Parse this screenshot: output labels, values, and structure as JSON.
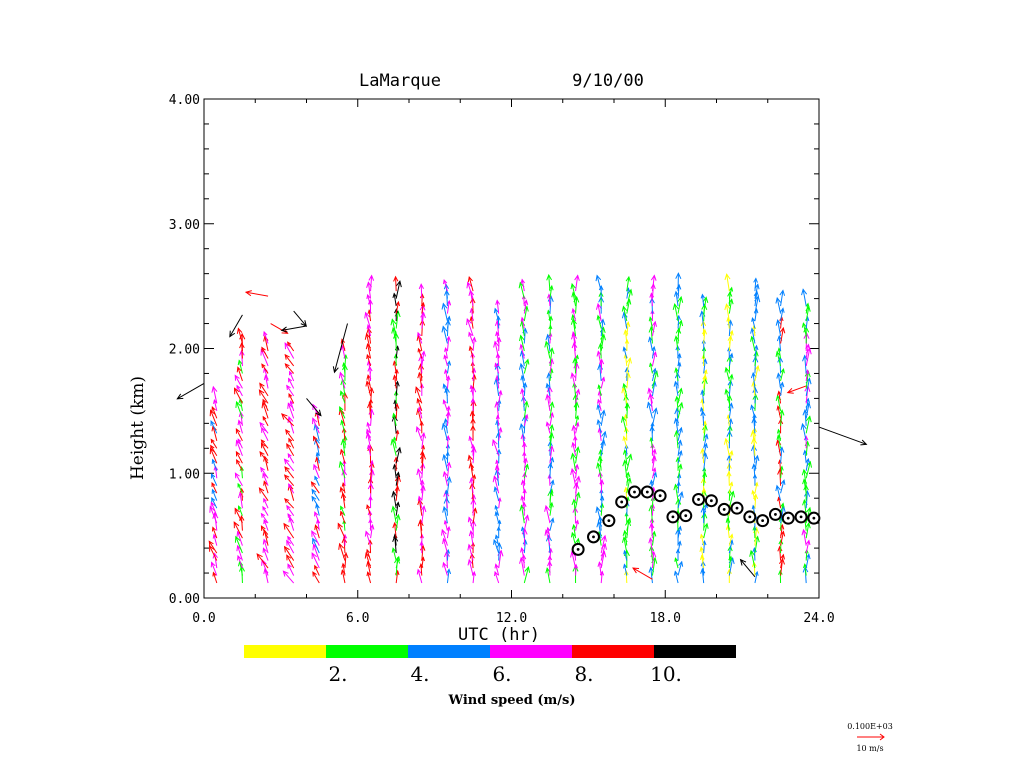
{
  "chart_data": {
    "type": "wind-profile",
    "title_location": "LaMarque",
    "title_date": "9/10/00",
    "xlabel": "UTC (hr)",
    "ylabel": "Height (km)",
    "xlim": [
      0,
      24
    ],
    "ylim": [
      0,
      4
    ],
    "x_ticks": [
      {
        "v": 0,
        "label": "0.0"
      },
      {
        "v": 6,
        "label": "6.0"
      },
      {
        "v": 12,
        "label": "12.0"
      },
      {
        "v": 18,
        "label": "18.0"
      },
      {
        "v": 24,
        "label": "24.0"
      }
    ],
    "y_ticks": [
      {
        "v": 0,
        "label": "0.00"
      },
      {
        "v": 1,
        "label": "1.00"
      },
      {
        "v": 2,
        "label": "2.00"
      },
      {
        "v": 3,
        "label": "3.00"
      },
      {
        "v": 4,
        "label": "4.00"
      }
    ],
    "profiles": [
      {
        "t": 0.5,
        "top": 1.6,
        "c": [
          "magenta",
          "red",
          "blue"
        ],
        "dir": 160
      },
      {
        "t": 1.5,
        "top": 2.1,
        "c": [
          "magenta",
          "red",
          "green"
        ],
        "dir": 165
      },
      {
        "t": 2.5,
        "top": 2.1,
        "c": [
          "red",
          "magenta"
        ],
        "dir": 155
      },
      {
        "t": 3.5,
        "top": 2.0,
        "c": [
          "red",
          "magenta"
        ],
        "dir": 150
      },
      {
        "t": 4.5,
        "top": 1.5,
        "c": [
          "red",
          "magenta",
          "blue"
        ],
        "dir": 160
      },
      {
        "t": 5.5,
        "top": 2.0,
        "c": [
          "red",
          "magenta",
          "green"
        ],
        "dir": 170
      },
      {
        "t": 6.5,
        "top": 2.5,
        "c": [
          "red",
          "magenta"
        ],
        "dir": 175
      },
      {
        "t": 7.5,
        "top": 2.5,
        "c": [
          "red",
          "black",
          "green"
        ],
        "dir": 180
      },
      {
        "t": 8.5,
        "top": 2.45,
        "c": [
          "magenta",
          "red"
        ],
        "dir": 175
      },
      {
        "t": 9.5,
        "top": 2.5,
        "c": [
          "magenta",
          "blue"
        ],
        "dir": 175
      },
      {
        "t": 10.5,
        "top": 2.5,
        "c": [
          "magenta",
          "red"
        ],
        "dir": 175
      },
      {
        "t": 11.5,
        "top": 2.3,
        "c": [
          "magenta",
          "blue"
        ],
        "dir": 175
      },
      {
        "t": 12.5,
        "top": 2.5,
        "c": [
          "blue",
          "magenta",
          "green"
        ],
        "dir": 180
      },
      {
        "t": 13.5,
        "top": 2.5,
        "c": [
          "magenta",
          "green",
          "blue"
        ],
        "dir": 180
      },
      {
        "t": 14.5,
        "top": 2.5,
        "c": [
          "magenta",
          "green"
        ],
        "dir": 180
      },
      {
        "t": 15.5,
        "top": 2.5,
        "c": [
          "blue",
          "magenta",
          "green"
        ],
        "dir": 180
      },
      {
        "t": 16.5,
        "top": 2.5,
        "c": [
          "green",
          "blue",
          "yellow"
        ],
        "dir": 180
      },
      {
        "t": 17.5,
        "top": 2.5,
        "c": [
          "blue",
          "green",
          "magenta"
        ],
        "dir": 180
      },
      {
        "t": 18.5,
        "top": 2.5,
        "c": [
          "green",
          "blue"
        ],
        "dir": 180
      },
      {
        "t": 19.5,
        "top": 2.4,
        "c": [
          "blue",
          "green",
          "yellow"
        ],
        "dir": 180
      },
      {
        "t": 20.5,
        "top": 2.5,
        "c": [
          "green",
          "blue",
          "yellow"
        ],
        "dir": 180
      },
      {
        "t": 21.5,
        "top": 2.5,
        "c": [
          "blue",
          "green",
          "yellow"
        ],
        "dir": 180
      },
      {
        "t": 22.5,
        "top": 2.4,
        "c": [
          "green",
          "blue",
          "red"
        ],
        "dir": 180
      },
      {
        "t": 23.5,
        "top": 2.4,
        "c": [
          "blue",
          "green",
          "magenta"
        ],
        "dir": 180
      }
    ],
    "isolated_vectors": [
      {
        "t": 0.0,
        "h": 1.72,
        "dir": 60,
        "speed": 11,
        "c": "black"
      },
      {
        "t": 1.5,
        "h": 2.27,
        "dir": 30,
        "speed": 9,
        "c": "black"
      },
      {
        "t": 2.5,
        "h": 2.42,
        "dir": 100,
        "speed": 8,
        "c": "red"
      },
      {
        "t": 2.6,
        "h": 2.2,
        "dir": 300,
        "speed": 7,
        "c": "red"
      },
      {
        "t": 3.5,
        "h": 2.3,
        "dir": 320,
        "speed": 7,
        "c": "black"
      },
      {
        "t": 4.0,
        "h": 1.6,
        "dir": 320,
        "speed": 8,
        "c": "black"
      },
      {
        "t": 4.0,
        "h": 2.18,
        "dir": 80,
        "speed": 9,
        "c": "black"
      },
      {
        "t": 5.6,
        "h": 2.2,
        "dir": 15,
        "speed": 18,
        "c": "black"
      },
      {
        "t": 21.5,
        "h": 0.17,
        "dir": 140,
        "speed": 8,
        "c": "black"
      },
      {
        "t": 17.5,
        "h": 0.15,
        "dir": 120,
        "speed": 8,
        "c": "red"
      },
      {
        "t": 24.0,
        "h": 1.37,
        "dir": 290,
        "speed": 18,
        "c": "black"
      },
      {
        "t": 23.5,
        "h": 1.7,
        "dir": 70,
        "speed": 7,
        "c": "red"
      }
    ],
    "boundary_layer_points": [
      {
        "t": 14.6,
        "h": 0.39
      },
      {
        "t": 15.2,
        "h": 0.49
      },
      {
        "t": 15.8,
        "h": 0.62
      },
      {
        "t": 16.3,
        "h": 0.77
      },
      {
        "t": 16.8,
        "h": 0.85
      },
      {
        "t": 17.3,
        "h": 0.85
      },
      {
        "t": 17.8,
        "h": 0.82
      },
      {
        "t": 18.3,
        "h": 0.65
      },
      {
        "t": 18.8,
        "h": 0.66
      },
      {
        "t": 19.3,
        "h": 0.79
      },
      {
        "t": 19.8,
        "h": 0.78
      },
      {
        "t": 20.3,
        "h": 0.71
      },
      {
        "t": 20.8,
        "h": 0.72
      },
      {
        "t": 21.3,
        "h": 0.65
      },
      {
        "t": 21.8,
        "h": 0.62
      },
      {
        "t": 22.3,
        "h": 0.67
      },
      {
        "t": 22.8,
        "h": 0.64
      },
      {
        "t": 23.3,
        "h": 0.65
      },
      {
        "t": 23.8,
        "h": 0.64
      }
    ],
    "legend": {
      "title": "Wind speed (m/s)",
      "colors": [
        "#ffff00",
        "#00ff00",
        "#0080ff",
        "#ff00ff",
        "#ff0000",
        "#000000"
      ],
      "bins": [
        {
          "label": "",
          "color": "#ffff00"
        },
        {
          "label": "2.",
          "color": "#00ff00"
        },
        {
          "label": "4.",
          "color": "#0080ff"
        },
        {
          "label": "6.",
          "color": "#ff00ff"
        },
        {
          "label": "8.",
          "color": "#ff0000"
        },
        {
          "label": "10.",
          "color": "#000000"
        }
      ]
    },
    "reference_vector": {
      "top_label": "0.100E+03",
      "bottom_label": "10 m/s",
      "speed": 10,
      "color": "#ff0000"
    },
    "color_map": {
      "yellow": "#ffff00",
      "green": "#00ff00",
      "blue": "#0080ff",
      "magenta": "#ff00ff",
      "red": "#ff0000",
      "black": "#000000"
    }
  }
}
